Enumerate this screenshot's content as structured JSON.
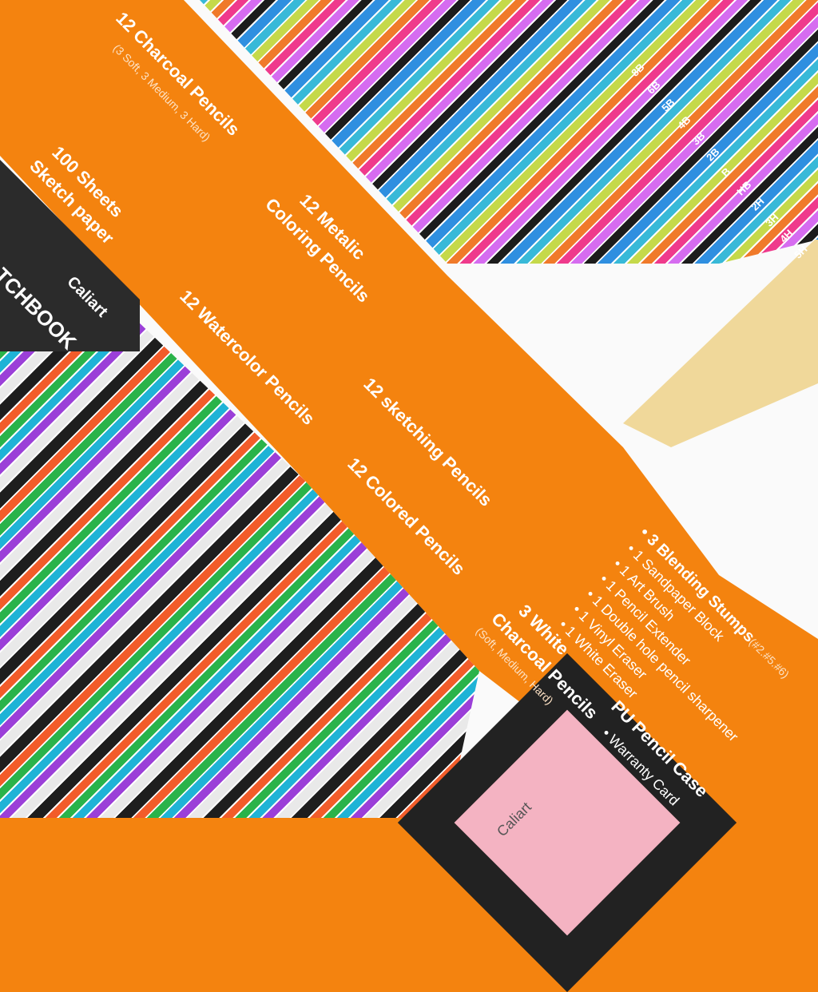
{
  "headings": {
    "charcoal": "12 Charcoal Pencils",
    "charcoal_sub": "(3 Soft, 3 Medium, 3 Hard)",
    "sheets_1": "100 Sheets",
    "sheets_2": "Sketch paper",
    "metalic_1": "12 Metalic",
    "metalic_2": "Coloring Pencils",
    "watercolor": "12 Watercolor Pencils",
    "sketching": "12 sketching Pencils",
    "colored": "12 Colored Pencils",
    "white_1": "3 White",
    "white_2": "Charcoal Pencils",
    "white_sub": "(Soft, Medium, Hard)",
    "case": "PU Pencil Case",
    "warranty": "• Warranty Card"
  },
  "accessories": [
    {
      "label": "• 3 Blending Stumps",
      "extra": "(#2.#5.#6)"
    },
    {
      "label": "• 1 Sandpaper Block"
    },
    {
      "label": "• 1 Art Brush"
    },
    {
      "label": "• 1 Pencil Extender"
    },
    {
      "label": "• 1 Double hole pencil sharpener"
    },
    {
      "label": "• 1 Vinyl Eraser"
    },
    {
      "label": "• 1 White Eraser"
    }
  ],
  "grades": [
    "8B",
    "6B",
    "5B",
    "4B",
    "3B",
    "2B",
    "B",
    "HB",
    "2H",
    "3H",
    "4H",
    "5H"
  ],
  "sketchbook": {
    "brand": "Caliart",
    "title": "TCHBOOK"
  },
  "case_brand": "Caliart",
  "colors": {
    "orange": "#f4830f",
    "white": "#fafafa"
  }
}
